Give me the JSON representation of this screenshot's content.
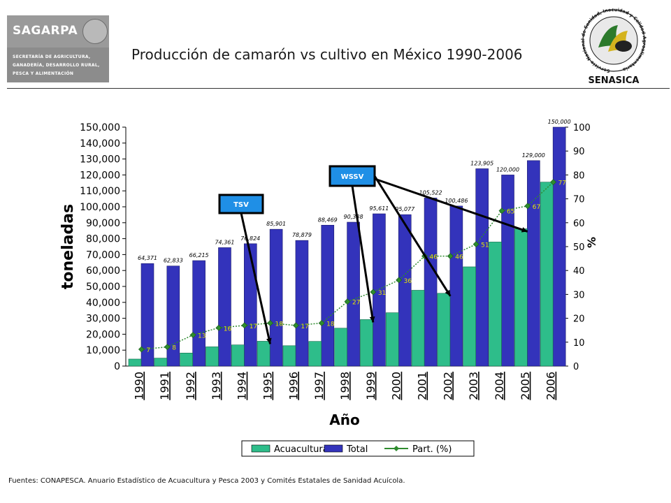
{
  "header": {
    "left_logo": {
      "name": "SAGARPA",
      "lines": [
        "SECRETARÍA DE AGRICULTURA,",
        "GANADERÍA, DESARROLLO RURAL,",
        "PESCA Y ALIMENTACIÓN"
      ]
    },
    "title": "Producción de camarón vs cultivo en México 1990-2006",
    "right_logo": {
      "name": "SENASICA",
      "ring_text": "Servicio Nacional de Sanidad, Inocuidad y Calidad Agroalimentaria"
    }
  },
  "chart_data": {
    "type": "bar",
    "categories": [
      "1990",
      "1991",
      "1992",
      "1993",
      "1994",
      "1995",
      "1996",
      "1997",
      "1998",
      "1999",
      "2000",
      "2001",
      "2002",
      "2003",
      "2004",
      "2005",
      "2006"
    ],
    "series": [
      {
        "name": "Acuacultura",
        "axis": "left",
        "type": "bar",
        "color": "#2ebd8a",
        "values": [
          4400,
          5000,
          8200,
          12100,
          13300,
          15600,
          12800,
          15500,
          23800,
          29200,
          33500,
          47600,
          45700,
          62300,
          77900,
          86200,
          115500
        ]
      },
      {
        "name": "Total",
        "axis": "left",
        "type": "bar",
        "color": "#3333bb",
        "values": [
          64371,
          62833,
          66215,
          74361,
          76824,
          85901,
          78879,
          88469,
          90338,
          95611,
          95077,
          105522,
          100486,
          123905,
          120000,
          129000,
          150000
        ],
        "labels": [
          "64,371",
          "62,833",
          "66,215",
          "74,361",
          "76,824",
          "85,901",
          "78,879",
          "88,469",
          "90,338",
          "95,611",
          "95,077",
          "105,522",
          "100,486",
          "123,905",
          "120,000",
          "129,000",
          "150,000"
        ]
      },
      {
        "name": "Part. (%)",
        "axis": "right",
        "type": "line",
        "color": "#2e8b2e",
        "values": [
          7,
          8,
          13,
          16,
          17,
          18,
          17,
          18,
          27,
          31,
          36,
          46,
          46,
          51,
          65,
          67,
          77
        ],
        "labels": [
          "7",
          "8",
          "13",
          "16",
          "17",
          "18",
          "17",
          "18",
          "27",
          "31",
          "36",
          "46",
          "46",
          "51",
          "65",
          "67",
          "77"
        ]
      }
    ],
    "y_left": {
      "label": "toneladas",
      "min": 0,
      "max": 150000,
      "step": 10000,
      "ticks": [
        "0",
        "10,000",
        "20,000",
        "30,000",
        "40,000",
        "50,000",
        "60,000",
        "70,000",
        "80,000",
        "90,000",
        "100,000",
        "110,000",
        "120,000",
        "130,000",
        "140,000",
        "150,000"
      ]
    },
    "y_right": {
      "label": "%",
      "min": 0,
      "max": 100,
      "step": 10,
      "ticks": [
        "0",
        "10",
        "20",
        "30",
        "40",
        "50",
        "60",
        "70",
        "80",
        "90",
        "100"
      ]
    },
    "xlabel": "Año",
    "grid": false,
    "legend": {
      "position": "bottom",
      "entries": [
        "Acuacultura",
        "Total",
        "Part. (%)"
      ]
    },
    "annotations": [
      {
        "text": "TSV",
        "target_years": [
          "1995"
        ]
      },
      {
        "text": "WSSV",
        "target_years": [
          "1999",
          "2002",
          "2005"
        ]
      }
    ]
  },
  "footer": {
    "source": "Fuentes: CONAPESCA. Anuario Estadístico de Acuacultura y Pesca 2003 y Comités Estatales de Sanidad Acuícola."
  }
}
